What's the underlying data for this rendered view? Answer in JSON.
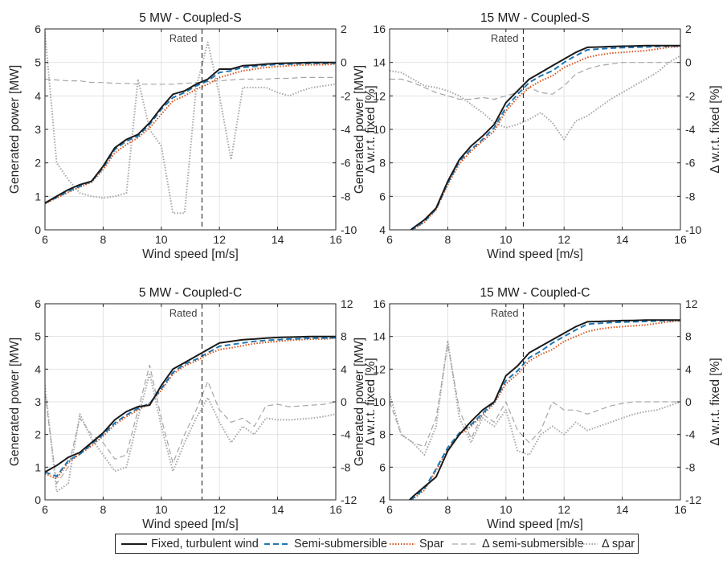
{
  "chart_data": [
    {
      "type": "line",
      "title": "5 MW - Coupled-S",
      "xlabel": "Wind speed [m/s]",
      "ylabel": "Generated power [MW]",
      "y2label": "Δ w.r.t. fixed [%]",
      "xlim": [
        6,
        16
      ],
      "ylim": [
        0,
        6
      ],
      "y2lim": [
        -10,
        2
      ],
      "xticks": [
        "6",
        "8",
        "10",
        "12",
        "14",
        "16"
      ],
      "yticks": [
        "0",
        "1",
        "2",
        "3",
        "4",
        "5",
        "6"
      ],
      "y2ticks": [
        "-10",
        "-8",
        "-6",
        "-4",
        "-2",
        "0",
        "2"
      ],
      "rated_x": 11.4,
      "rated_label": "Rated",
      "x": [
        6.0,
        6.4,
        6.8,
        7.2,
        7.6,
        8.0,
        8.4,
        8.8,
        9.2,
        9.6,
        10.0,
        10.4,
        10.8,
        11.2,
        11.6,
        12.0,
        12.4,
        12.8,
        13.2,
        13.6,
        14.0,
        14.4,
        14.8,
        15.2,
        15.6,
        16.0
      ],
      "series": [
        {
          "name": "Fixed, turbulent wind",
          "axis": "left",
          "values": [
            0.8,
            1.0,
            1.2,
            1.35,
            1.45,
            1.9,
            2.45,
            2.7,
            2.85,
            3.2,
            3.65,
            4.05,
            4.15,
            4.35,
            4.5,
            4.8,
            4.8,
            4.9,
            4.92,
            4.95,
            4.97,
            4.98,
            4.99,
            5.0,
            5.0,
            5.0
          ]
        },
        {
          "name": "Semi-submersible",
          "axis": "left",
          "values": [
            0.8,
            0.97,
            1.15,
            1.3,
            1.45,
            1.85,
            2.4,
            2.65,
            2.8,
            3.15,
            3.6,
            3.95,
            4.1,
            4.3,
            4.45,
            4.7,
            4.75,
            4.85,
            4.88,
            4.92,
            4.94,
            4.95,
            4.96,
            4.97,
            4.97,
            4.98
          ]
        },
        {
          "name": "Spar",
          "axis": "left",
          "values": [
            0.78,
            0.95,
            1.12,
            1.28,
            1.42,
            1.8,
            2.3,
            2.55,
            2.75,
            3.05,
            3.45,
            3.85,
            4.0,
            4.2,
            4.35,
            4.55,
            4.65,
            4.75,
            4.8,
            4.85,
            4.88,
            4.9,
            4.92,
            4.93,
            4.93,
            4.95
          ]
        },
        {
          "name": "Δ semi-submersible",
          "axis": "right",
          "values": [
            -1.0,
            -1.05,
            -1.1,
            -1.1,
            -1.2,
            -1.2,
            -1.25,
            -1.25,
            -1.3,
            -1.3,
            -1.3,
            -1.3,
            -1.25,
            -1.2,
            -1.15,
            -1.1,
            -1.05,
            -1.0,
            -1.0,
            -1.0,
            -0.95,
            -0.95,
            -0.9,
            -0.9,
            -0.9,
            -0.9
          ]
        },
        {
          "name": "Δ spar",
          "axis": "right",
          "values": [
            1.8,
            -6.0,
            -7.0,
            -7.8,
            -8.0,
            -8.1,
            -8.0,
            -7.8,
            -1.0,
            -4.0,
            -5.0,
            -9.0,
            -9.0,
            -1.5,
            1.2,
            -2.0,
            -5.8,
            -1.5,
            -1.5,
            -1.5,
            -1.8,
            -2.0,
            -1.7,
            -1.5,
            -1.4,
            -1.3
          ]
        }
      ]
    },
    {
      "type": "line",
      "title": "15 MW - Coupled-S",
      "xlabel": "Wind speed [m/s]",
      "ylabel": "Generated power [MW]",
      "y2label": "Δ w.r.t. fixed [%]",
      "xlim": [
        6,
        16
      ],
      "ylim": [
        4,
        16
      ],
      "y2lim": [
        -10,
        2
      ],
      "xticks": [
        "6",
        "8",
        "10",
        "12",
        "14",
        "16"
      ],
      "yticks": [
        "4",
        "6",
        "8",
        "10",
        "12",
        "14",
        "16"
      ],
      "y2ticks": [
        "-10",
        "-8",
        "-6",
        "-4",
        "-2",
        "0",
        "2"
      ],
      "rated_x": 10.6,
      "rated_label": "Rated",
      "x": [
        6.0,
        6.4,
        6.8,
        7.2,
        7.6,
        8.0,
        8.4,
        8.8,
        9.2,
        9.6,
        10.0,
        10.4,
        10.8,
        11.2,
        11.6,
        12.0,
        12.4,
        12.8,
        13.2,
        13.6,
        14.0,
        14.4,
        14.8,
        15.2,
        15.6,
        16.0
      ],
      "series": [
        {
          "name": "Fixed, turbulent wind",
          "axis": "left",
          "values": [
            3.0,
            3.5,
            4.1,
            4.6,
            5.3,
            6.9,
            8.2,
            9.0,
            9.6,
            10.3,
            11.6,
            12.3,
            13.0,
            13.4,
            13.8,
            14.2,
            14.6,
            14.9,
            14.92,
            14.95,
            14.97,
            14.98,
            15.0,
            15.0,
            15.0,
            15.0
          ]
        },
        {
          "name": "Semi-submersible",
          "axis": "left",
          "values": [
            3.0,
            3.5,
            4.05,
            4.5,
            5.25,
            6.8,
            8.1,
            8.8,
            9.4,
            10.1,
            11.3,
            12.1,
            12.8,
            13.2,
            13.5,
            14.0,
            14.4,
            14.75,
            14.8,
            14.85,
            14.88,
            14.9,
            14.92,
            14.95,
            14.97,
            14.98
          ]
        },
        {
          "name": "Spar",
          "axis": "left",
          "values": [
            3.0,
            3.45,
            4.0,
            4.45,
            5.2,
            6.7,
            7.95,
            8.7,
            9.3,
            9.9,
            11.1,
            11.9,
            12.5,
            12.9,
            13.2,
            13.7,
            14.0,
            14.3,
            14.45,
            14.55,
            14.6,
            14.65,
            14.7,
            14.8,
            14.9,
            14.95
          ]
        },
        {
          "name": "Δ semi-submersible",
          "axis": "right",
          "values": [
            -1.0,
            -1.0,
            -1.2,
            -1.5,
            -1.8,
            -2.0,
            -2.2,
            -2.2,
            -2.1,
            -2.2,
            -2.0,
            -1.8,
            -1.5,
            -1.8,
            -1.9,
            -1.4,
            -0.7,
            -0.4,
            -0.2,
            -0.1,
            0.0,
            0.0,
            0.0,
            0.0,
            0.0,
            0.0
          ]
        },
        {
          "name": "Δ spar",
          "axis": "right",
          "values": [
            -0.5,
            -0.6,
            -1.0,
            -1.4,
            -1.5,
            -1.7,
            -2.0,
            -2.5,
            -3.0,
            -3.6,
            -3.9,
            -3.7,
            -3.4,
            -3.0,
            -3.6,
            -4.6,
            -3.5,
            -3.2,
            -2.7,
            -2.2,
            -1.8,
            -1.4,
            -1.0,
            -0.6,
            0.0,
            0.4
          ]
        }
      ]
    },
    {
      "type": "line",
      "title": "5 MW - Coupled-C",
      "xlabel": "Wind speed [m/s]",
      "ylabel": "Generated power [MW]",
      "y2label": "Δ w.r.t. fixed [%]",
      "xlim": [
        6,
        16
      ],
      "ylim": [
        0,
        6
      ],
      "y2lim": [
        -12,
        12
      ],
      "xticks": [
        "6",
        "8",
        "10",
        "12",
        "14",
        "16"
      ],
      "yticks": [
        "0",
        "1",
        "2",
        "3",
        "4",
        "5",
        "6"
      ],
      "y2ticks": [
        "-12",
        "-8",
        "-4",
        "0",
        "4",
        "8",
        "12"
      ],
      "rated_x": 11.4,
      "rated_label": "Rated",
      "x": [
        6.0,
        6.4,
        6.8,
        7.2,
        7.6,
        8.0,
        8.4,
        8.8,
        9.2,
        9.6,
        10.0,
        10.4,
        10.8,
        11.2,
        11.6,
        12.0,
        12.4,
        12.8,
        13.2,
        13.6,
        14.0,
        14.4,
        14.8,
        15.2,
        15.6,
        16.0
      ],
      "series": [
        {
          "name": "Fixed, turbulent wind",
          "axis": "left",
          "values": [
            0.85,
            1.05,
            1.3,
            1.45,
            1.75,
            2.05,
            2.45,
            2.7,
            2.85,
            2.9,
            3.5,
            4.0,
            4.2,
            4.4,
            4.6,
            4.8,
            4.85,
            4.9,
            4.92,
            4.95,
            4.97,
            4.98,
            4.99,
            5.0,
            5.0,
            5.0
          ]
        },
        {
          "name": "Semi-submersible",
          "axis": "left",
          "values": [
            0.85,
            0.72,
            1.2,
            1.4,
            1.7,
            2.0,
            2.35,
            2.6,
            2.8,
            2.95,
            3.4,
            3.9,
            4.15,
            4.3,
            4.5,
            4.7,
            4.75,
            4.8,
            4.85,
            4.88,
            4.9,
            4.92,
            4.93,
            4.95,
            4.95,
            4.96
          ]
        },
        {
          "name": "Spar",
          "axis": "left",
          "values": [
            0.8,
            0.65,
            1.15,
            1.4,
            1.65,
            1.95,
            2.3,
            2.55,
            2.75,
            2.95,
            3.35,
            3.85,
            4.1,
            4.25,
            4.45,
            4.6,
            4.65,
            4.72,
            4.78,
            4.82,
            4.85,
            4.88,
            4.9,
            4.92,
            4.92,
            4.95
          ]
        },
        {
          "name": "Δ semi-submersible",
          "axis": "right",
          "values": [
            1.0,
            -10.0,
            -8.0,
            -2.0,
            -4.0,
            -5.0,
            -7.0,
            -6.5,
            -1.0,
            4.5,
            -2.0,
            -7.5,
            -4.0,
            -1.0,
            2.5,
            -1.0,
            -2.5,
            -2.0,
            -3.0,
            -0.5,
            -0.3,
            -0.6,
            -0.5,
            -0.4,
            -0.3,
            0.0
          ]
        },
        {
          "name": "Δ spar",
          "axis": "right",
          "values": [
            2.0,
            -11.0,
            -10.0,
            -1.5,
            -4.5,
            -6.5,
            -8.5,
            -8.0,
            -2.0,
            3.5,
            -3.0,
            -8.5,
            -5.0,
            -2.0,
            0.5,
            -2.5,
            -5.0,
            -3.0,
            -4.0,
            -2.0,
            -2.2,
            -2.2,
            -2.1,
            -2.0,
            -1.8,
            -1.5
          ]
        }
      ]
    },
    {
      "type": "line",
      "title": "15 MW - Coupled-C",
      "xlabel": "Wind speed [m/s]",
      "ylabel": "Generated power [MW]",
      "y2label": "Δ w.r.t. fixed [%]",
      "xlim": [
        6,
        16
      ],
      "ylim": [
        4,
        16
      ],
      "y2lim": [
        -12,
        12
      ],
      "xticks": [
        "6",
        "8",
        "10",
        "12",
        "14",
        "16"
      ],
      "yticks": [
        "4",
        "6",
        "8",
        "10",
        "12",
        "14",
        "16"
      ],
      "y2ticks": [
        "-12",
        "-8",
        "-4",
        "0",
        "4",
        "8",
        "12"
      ],
      "rated_x": 10.6,
      "rated_label": "Rated",
      "x": [
        6.0,
        6.4,
        6.8,
        7.2,
        7.6,
        8.0,
        8.4,
        8.8,
        9.2,
        9.6,
        10.0,
        10.4,
        10.8,
        11.2,
        11.6,
        12.0,
        12.4,
        12.8,
        13.2,
        13.6,
        14.0,
        14.4,
        14.8,
        15.2,
        15.6,
        16.0
      ],
      "series": [
        {
          "name": "Fixed, turbulent wind",
          "axis": "left",
          "values": [
            3.0,
            3.5,
            4.2,
            4.8,
            5.4,
            7.0,
            8.0,
            8.8,
            9.5,
            10.0,
            11.6,
            12.2,
            13.0,
            13.4,
            13.8,
            14.2,
            14.6,
            14.9,
            14.92,
            14.95,
            14.97,
            14.98,
            15.0,
            15.0,
            15.0,
            15.0
          ]
        },
        {
          "name": "Semi-submersible",
          "axis": "left",
          "values": [
            3.0,
            3.5,
            4.1,
            4.7,
            5.9,
            7.2,
            8.1,
            8.6,
            9.3,
            10.0,
            11.3,
            11.9,
            12.7,
            13.1,
            13.6,
            14.0,
            14.4,
            14.75,
            14.8,
            14.85,
            14.88,
            14.9,
            14.92,
            14.95,
            14.97,
            14.98
          ]
        },
        {
          "name": "Spar",
          "axis": "left",
          "values": [
            3.0,
            3.45,
            4.05,
            4.6,
            5.8,
            7.1,
            8.0,
            8.5,
            9.2,
            9.9,
            11.1,
            11.7,
            12.5,
            12.9,
            13.2,
            13.7,
            14.0,
            14.3,
            14.45,
            14.55,
            14.6,
            14.65,
            14.7,
            14.8,
            14.9,
            14.95
          ]
        },
        {
          "name": "Δ semi-submersible",
          "axis": "right",
          "values": [
            0.0,
            -4.0,
            -5.0,
            -5.5,
            -2.0,
            7.0,
            -1.0,
            -4.5,
            -1.5,
            -2.5,
            0.0,
            -3.5,
            -5.0,
            -3.5,
            0.0,
            -1.0,
            -1.0,
            -1.5,
            -1.0,
            -0.5,
            -0.2,
            0.0,
            0.0,
            0.0,
            0.0,
            0.0
          ]
        },
        {
          "name": "Δ spar",
          "axis": "right",
          "values": [
            1.0,
            -4.0,
            -5.0,
            -6.5,
            -3.0,
            7.5,
            -2.0,
            -5.0,
            -2.0,
            -3.0,
            -1.0,
            -6.0,
            -6.5,
            -4.0,
            -3.0,
            -4.0,
            -2.5,
            -3.5,
            -3.0,
            -2.5,
            -2.0,
            -1.5,
            -1.2,
            -1.0,
            -0.5,
            0.0
          ]
        }
      ]
    }
  ],
  "legend": {
    "entries": [
      {
        "label": "Fixed, turbulent wind",
        "color": "#1a1a1a",
        "style": "solid"
      },
      {
        "label": "Semi-submersible",
        "color": "#1f77b4",
        "style": "dashed"
      },
      {
        "label": "Spar",
        "color": "#d95319",
        "style": "dotted"
      },
      {
        "label": "Δ semi-submersible",
        "color": "#a6a6a6",
        "style": "dashed"
      },
      {
        "label": "Δ spar",
        "color": "#a6a6a6",
        "style": "dotted"
      }
    ]
  }
}
